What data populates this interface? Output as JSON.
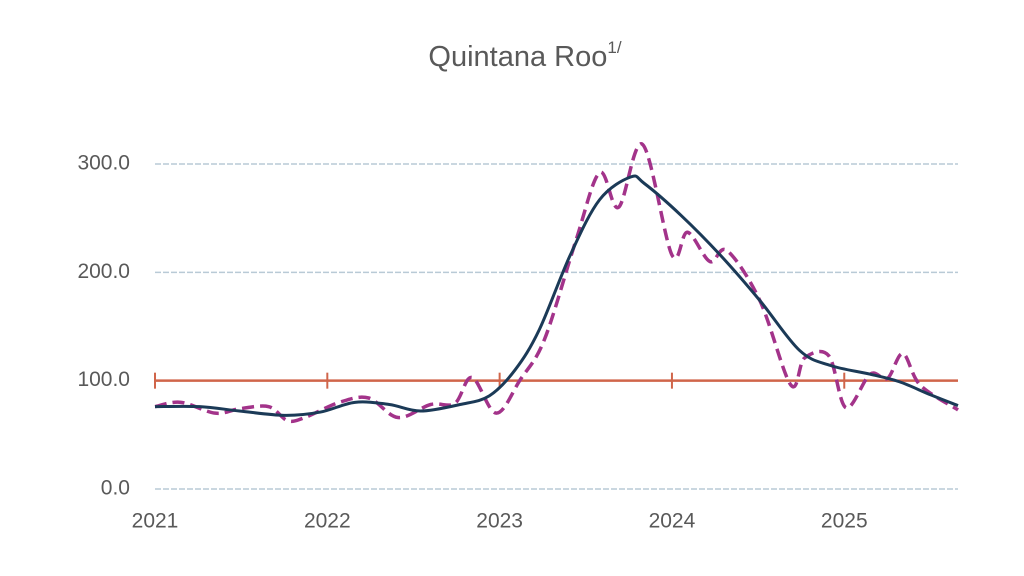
{
  "chart_data": {
    "type": "line",
    "title": "Quintana Roo",
    "title_superscript": "1/",
    "xlim": [
      2021,
      2025.66
    ],
    "xticks": [
      2021,
      2022,
      2023,
      2024,
      2025
    ],
    "ylim": [
      0,
      330
    ],
    "yticks": [
      {
        "value": 0,
        "label": "0.0"
      },
      {
        "value": 100,
        "label": "100.0"
      },
      {
        "value": 200,
        "label": "200.0"
      },
      {
        "value": 300,
        "label": "300.0"
      }
    ],
    "grid": true,
    "reference_line": {
      "value": 100,
      "color": "#d0654a"
    },
    "series": [
      {
        "color": "#a3338a",
        "dashed": true,
        "x": [
          2021.0,
          2021.15,
          2021.35,
          2021.49,
          2021.66,
          2021.77,
          2021.87,
          2022.07,
          2022.24,
          2022.41,
          2022.6,
          2022.74,
          2022.84,
          2022.98,
          2023.12,
          2023.26,
          2023.44,
          2023.58,
          2023.69,
          2023.83,
          2024.0,
          2024.09,
          2024.22,
          2024.32,
          2024.51,
          2024.69,
          2024.77,
          2024.91,
          2025.01,
          2025.15,
          2025.25,
          2025.34,
          2025.44,
          2025.66
        ],
        "values": [
          76,
          80,
          70,
          74,
          76,
          63,
          66,
          80,
          84,
          66,
          78,
          79,
          103,
          70,
          101,
          138,
          228,
          292,
          260,
          318,
          216,
          237,
          210,
          220,
          174,
          96,
          121,
          123,
          75,
          106,
          102,
          125,
          96,
          73
        ]
      },
      {
        "color": "#1b3a57",
        "dashed": false,
        "x": [
          2021.0,
          2021.26,
          2021.49,
          2021.75,
          2021.96,
          2022.16,
          2022.36,
          2022.54,
          2022.77,
          2022.94,
          2023.09,
          2023.23,
          2023.41,
          2023.58,
          2023.76,
          2023.84,
          2024.05,
          2024.28,
          2024.51,
          2024.74,
          2024.92,
          2025.15,
          2025.32,
          2025.5,
          2025.66
        ],
        "values": [
          76,
          76,
          72,
          68,
          71,
          80,
          78,
          72,
          78,
          86,
          110,
          147,
          216,
          267,
          288,
          282,
          253,
          216,
          174,
          128,
          114,
          106,
          99,
          87,
          77
        ]
      }
    ]
  }
}
